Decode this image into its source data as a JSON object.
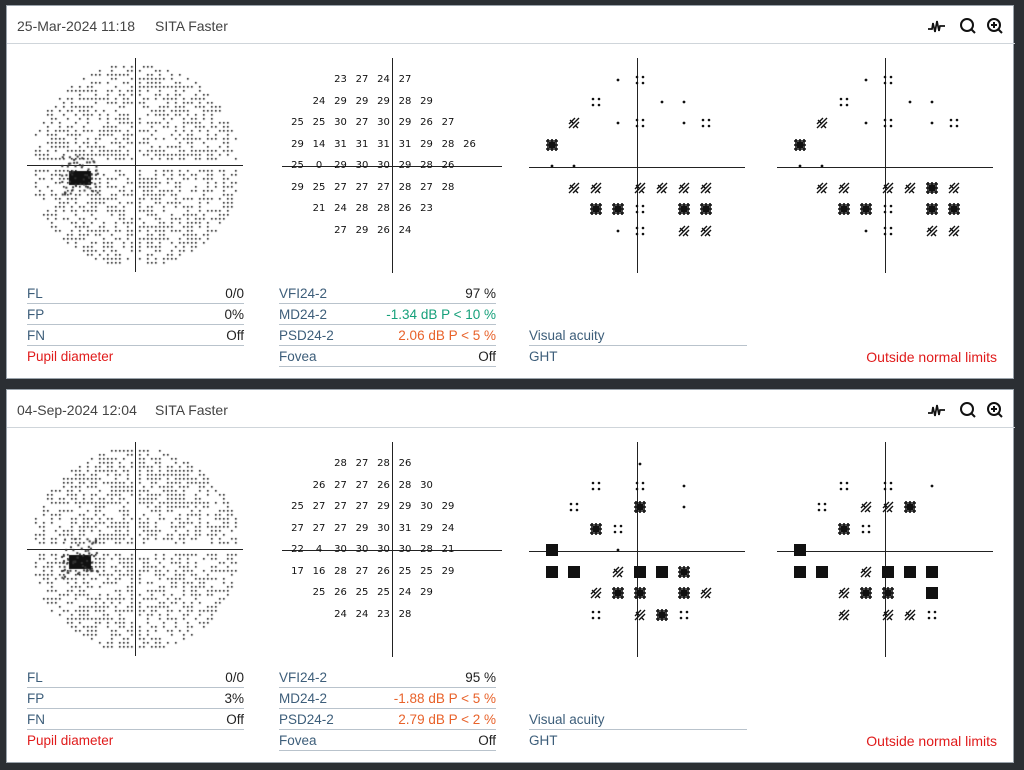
{
  "tests": [
    {
      "date": "25-Mar-2024 11:18",
      "strategy": "SITA Faster",
      "thresholds": [
        [
          "",
          "",
          "",
          "23",
          "27",
          "24",
          "27",
          "",
          ""
        ],
        [
          "",
          "",
          "24",
          "29",
          "29",
          "29",
          "28",
          "29",
          ""
        ],
        [
          "",
          "25",
          "25",
          "30",
          "27",
          "30",
          "29",
          "26",
          "27"
        ],
        [
          "",
          "29",
          "14",
          "31",
          "31",
          "31",
          "31",
          "29",
          "28",
          "26"
        ],
        [
          "",
          "25",
          "0",
          "29",
          "30",
          "30",
          "29",
          "28",
          "26"
        ],
        [
          "",
          "29",
          "25",
          "27",
          "27",
          "27",
          "28",
          "27",
          "28"
        ],
        [
          "",
          "",
          "21",
          "24",
          "28",
          "28",
          "26",
          "23",
          ""
        ],
        [
          "",
          "",
          "",
          "27",
          "29",
          "26",
          "24",
          "",
          ""
        ]
      ],
      "td_map": [
        "...ab...",
        "..b..aa.",
        ".d.ab.ab.",
        "e.........",
        "cc.......",
        ".dd.dddd",
        "..eeb.ee",
        "...ab.dd"
      ],
      "pd_map": [
        "...ab...",
        "..b..aa.",
        ".d.ab.ab.",
        "e.........",
        "cc.......",
        ".dd.dded",
        "..eeb.ee",
        "...ab.dd"
      ],
      "reliability": {
        "fl_label": "FL",
        "fl_value": "0/0",
        "fp_label": "FP",
        "fp_value": "0%",
        "fn_label": "FN",
        "fn_value": "Off",
        "pupil_label": "Pupil diameter"
      },
      "indices": {
        "vfi_label": "VFI24-2",
        "vfi_value": "97 %",
        "md_label": "MD24-2",
        "md_value": "-1.34 dB P < 10 %",
        "psd_label": "PSD24-2",
        "psd_value": "2.06 dB P < 5 %",
        "fovea_label": "Fovea",
        "fovea_value": "Off"
      },
      "visual_acuity_label": "Visual acuity",
      "ght_label": "GHT",
      "ght_value": "Outside normal limits",
      "md_color": "#15a07a",
      "psd_color": "#e8622a"
    },
    {
      "date": "04-Sep-2024 12:04",
      "strategy": "SITA Faster",
      "thresholds": [
        [
          "",
          "",
          "",
          "28",
          "27",
          "28",
          "26",
          "",
          ""
        ],
        [
          "",
          "",
          "26",
          "27",
          "27",
          "26",
          "28",
          "30",
          ""
        ],
        [
          "",
          "25",
          "27",
          "27",
          "27",
          "29",
          "29",
          "30",
          "29"
        ],
        [
          "",
          "27",
          "27",
          "27",
          "29",
          "30",
          "31",
          "29",
          "24"
        ],
        [
          "",
          "22",
          "4",
          "30",
          "30",
          "30",
          "30",
          "28",
          "21"
        ],
        [
          "",
          "17",
          "16",
          "28",
          "27",
          "26",
          "25",
          "25",
          "29"
        ],
        [
          "",
          "",
          "25",
          "26",
          "25",
          "25",
          "24",
          "29",
          ""
        ],
        [
          "",
          "",
          "",
          "24",
          "24",
          "23",
          "28",
          "",
          ""
        ]
      ],
      "td_map": [
        "....a...",
        "..b.b.a.",
        ".b..e.a..",
        "..eb......",
        "f..a.....",
        "ff.dffe",
        "..dee.ed",
        "..b.deb."
      ],
      "pd_map": [
        "........",
        "..b.b.a.",
        ".b.dde...",
        "..eb.....",
        "f.......",
        "ff.dfff",
        "..dee.f",
        "..d.ddb."
      ],
      "reliability": {
        "fl_label": "FL",
        "fl_value": "0/0",
        "fp_label": "FP",
        "fp_value": "3%",
        "fn_label": "FN",
        "fn_value": "Off",
        "pupil_label": "Pupil diameter"
      },
      "indices": {
        "vfi_label": "VFI24-2",
        "vfi_value": "95 %",
        "md_label": "MD24-2",
        "md_value": "-1.88 dB P < 5 %",
        "psd_label": "PSD24-2",
        "psd_value": "2.79 dB P < 2 %",
        "fovea_label": "Fovea",
        "fovea_value": "Off"
      },
      "visual_acuity_label": "Visual acuity",
      "ght_label": "GHT",
      "ght_value": "Outside normal limits",
      "md_color": "#e8622a",
      "psd_color": "#e8622a"
    }
  ],
  "icons": [
    "wave-icon",
    "search-icon",
    "zoom-in-icon"
  ]
}
